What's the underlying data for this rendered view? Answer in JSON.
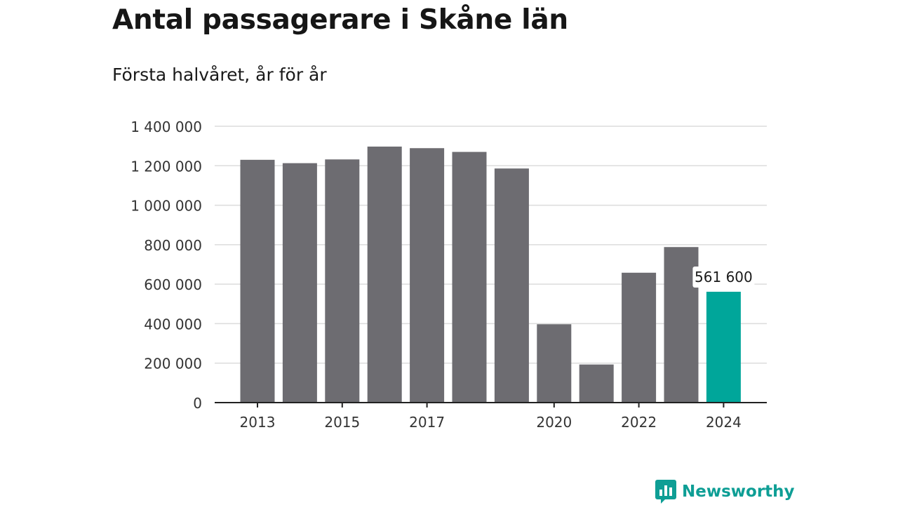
{
  "title": "Antal passagerare i Skåne län",
  "subtitle": "Första halvåret, år för år",
  "brand": {
    "name": "Newsworthy",
    "icon": "newsworthy-logo-icon",
    "color": "#0e9e95"
  },
  "chart_data": {
    "type": "bar",
    "categories": [
      "2013",
      "2014",
      "2015",
      "2016",
      "2017",
      "2018",
      "2019",
      "2020",
      "2021",
      "2022",
      "2023",
      "2024"
    ],
    "values": [
      1230000,
      1213000,
      1232000,
      1297000,
      1289000,
      1270000,
      1186000,
      397000,
      193000,
      658000,
      788000,
      561600
    ],
    "colors": {
      "default": "#6d6c71",
      "highlight": "#00a69a"
    },
    "highlight_index": 11,
    "annotation": {
      "index": 11,
      "text": "561 600"
    },
    "x_tick_labels": [
      "2013",
      "2015",
      "2017",
      "2020",
      "2022",
      "2024"
    ],
    "y_ticks": [
      0,
      200000,
      400000,
      600000,
      800000,
      1000000,
      1200000,
      1400000
    ],
    "y_tick_labels": [
      "0",
      "200 000",
      "400 000",
      "600 000",
      "800 000",
      "1 000 000",
      "1 200 000",
      "1 400 000"
    ],
    "ylim": [
      0,
      1400000
    ],
    "grid": true,
    "xlabel": "",
    "ylabel": ""
  }
}
